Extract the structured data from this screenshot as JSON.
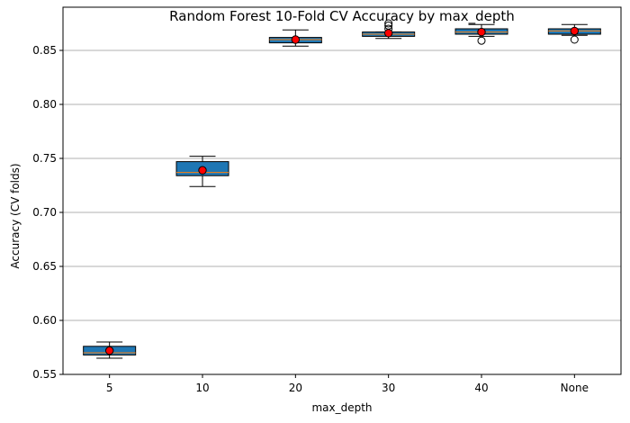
{
  "chart_data": {
    "type": "box",
    "title": "Random Forest 10-Fold CV Accuracy by max_depth",
    "xlabel": "max_depth",
    "ylabel": "Accuracy (CV folds)",
    "ylim": [
      0.55,
      0.89
    ],
    "yticks": [
      0.55,
      0.6,
      0.65,
      0.7,
      0.75,
      0.8,
      0.85
    ],
    "ytick_labels": [
      "0.55",
      "0.60",
      "0.65",
      "0.70",
      "0.75",
      "0.80",
      "0.85"
    ],
    "grid": "y",
    "categories": [
      "5",
      "10",
      "20",
      "30",
      "40",
      "None"
    ],
    "boxes": [
      {
        "whisker_low": 0.565,
        "q1": 0.568,
        "median": 0.57,
        "q3": 0.576,
        "whisker_high": 0.58,
        "mean": 0.572,
        "outliers": []
      },
      {
        "whisker_low": 0.724,
        "q1": 0.734,
        "median": 0.737,
        "q3": 0.747,
        "whisker_high": 0.752,
        "mean": 0.739,
        "outliers": []
      },
      {
        "whisker_low": 0.854,
        "q1": 0.857,
        "median": 0.86,
        "q3": 0.862,
        "whisker_high": 0.869,
        "mean": 0.86,
        "outliers": []
      },
      {
        "whisker_low": 0.861,
        "q1": 0.863,
        "median": 0.865,
        "q3": 0.867,
        "whisker_high": 0.867,
        "mean": 0.866,
        "outliers": [
          0.87,
          0.873,
          0.875
        ]
      },
      {
        "whisker_low": 0.863,
        "q1": 0.865,
        "median": 0.867,
        "q3": 0.87,
        "whisker_high": 0.874,
        "mean": 0.867,
        "outliers": [
          0.859
        ]
      },
      {
        "whisker_low": 0.864,
        "q1": 0.865,
        "median": 0.868,
        "q3": 0.87,
        "whisker_high": 0.874,
        "mean": 0.868,
        "outliers": [
          0.86
        ]
      }
    ],
    "colors": {
      "box_fill": "#1f77b4",
      "median_line": "#ff7f0e",
      "mean_marker": "#ff0000",
      "grid": "#b0b0b0"
    }
  }
}
